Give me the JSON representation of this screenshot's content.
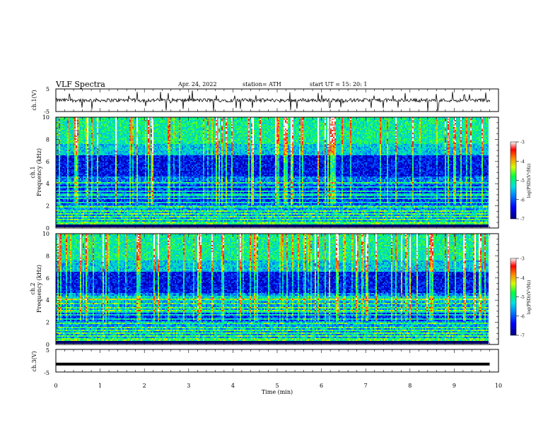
{
  "header": {
    "title": "VLF  Spectra",
    "date": "Apr. 24, 2022",
    "station": "station= ATH",
    "start": "start  UT  =    15: 20: 1"
  },
  "chart_data": [
    {
      "type": "line",
      "panel": "ch1-waveform",
      "ylabel": "ch.1(V)",
      "ylim": [
        -5,
        5
      ],
      "yticks": [
        "5",
        "-5"
      ],
      "xlim": [
        0,
        10
      ],
      "series": [
        {
          "baseline": 0,
          "noise_amplitude": 0.8,
          "color": "#000000"
        }
      ]
    },
    {
      "type": "heatmap",
      "panel": "ch1-spectrogram",
      "ylabel_top": "ch.1",
      "ylabel": "Frequency  (kHz)",
      "ylim": [
        0,
        10
      ],
      "yticks": [
        "0",
        "2",
        "4",
        "6",
        "8",
        "10"
      ],
      "xlim": [
        0,
        9.8
      ],
      "colorbar": {
        "label": "log(PSD)(V²/Hz)",
        "min": -7,
        "max": -3,
        "ticks": [
          "-3",
          "-4",
          "-5",
          "-6",
          "-7"
        ]
      }
    },
    {
      "type": "heatmap",
      "panel": "ch2-spectrogram",
      "ylabel_top": "ch.2",
      "ylabel": "Frequency  (kHz)",
      "ylim": [
        0,
        10
      ],
      "yticks": [
        "0",
        "2",
        "4",
        "6",
        "8",
        "10"
      ],
      "xlim": [
        0,
        9.8
      ],
      "colorbar": {
        "label": "log(PSD)(V²/Hz)",
        "min": -7,
        "max": -3,
        "ticks": [
          "-3",
          "-4",
          "-5",
          "-6",
          "-7"
        ]
      }
    },
    {
      "type": "line",
      "panel": "ch3-waveform",
      "ylabel": "ch.3(V)",
      "ylim": [
        -5,
        5
      ],
      "yticks": [
        "5",
        "-5"
      ],
      "xlim": [
        0,
        10
      ],
      "series": [
        {
          "baseline": -1.5,
          "color": "#000000"
        }
      ]
    }
  ],
  "x_axis": {
    "label": "Time  (min)",
    "ticks": [
      "0",
      "1",
      "2",
      "3",
      "4",
      "5",
      "6",
      "7",
      "8",
      "9",
      "10"
    ]
  }
}
